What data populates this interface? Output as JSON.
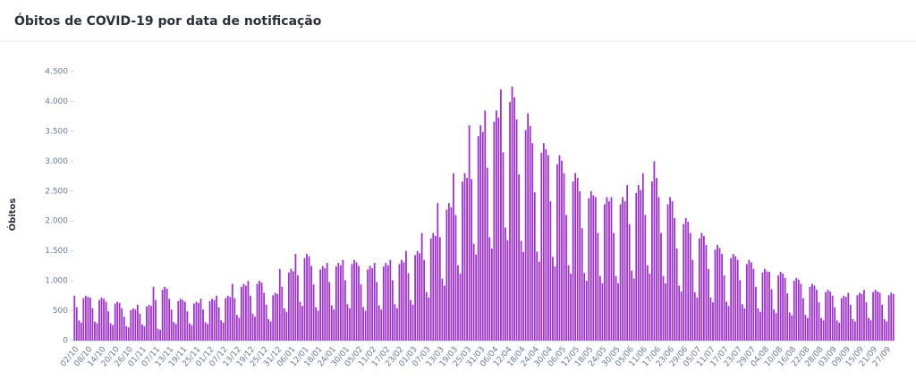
{
  "chart_data": {
    "type": "bar",
    "title": "Óbitos de COVID-19 por data de notificação",
    "y_label": "Óbitos",
    "color": "#9b2fd1",
    "grid": false,
    "ylim": [
      0,
      4500
    ],
    "yticks": [
      0,
      500,
      {
        "value": 1000,
        "label": "1.000"
      },
      {
        "value": 1500,
        "label": "1.500"
      },
      {
        "value": 2000,
        "label": "2.000"
      },
      {
        "value": 2500,
        "label": "2.500"
      },
      {
        "value": 3000,
        "label": "3.000"
      },
      {
        "value": 3500,
        "label": "3.500"
      },
      {
        "value": 4000,
        "label": "4.000"
      },
      {
        "value": 4500,
        "label": "4.500"
      }
    ],
    "categories": [
      "02/10",
      null,
      null,
      null,
      null,
      null,
      "08/10",
      null,
      null,
      null,
      null,
      null,
      "14/10",
      null,
      null,
      null,
      null,
      null,
      "20/10",
      null,
      null,
      null,
      null,
      null,
      "26/10",
      null,
      null,
      null,
      null,
      null,
      "01/11",
      null,
      null,
      null,
      null,
      null,
      "07/11",
      null,
      null,
      null,
      null,
      null,
      "13/11",
      null,
      null,
      null,
      null,
      null,
      "19/11",
      null,
      null,
      null,
      null,
      null,
      "25/11",
      null,
      null,
      null,
      null,
      null,
      "01/12",
      null,
      null,
      null,
      null,
      null,
      "07/12",
      null,
      null,
      null,
      null,
      null,
      "13/12",
      null,
      null,
      null,
      null,
      null,
      "19/12",
      null,
      null,
      null,
      null,
      null,
      "25/12",
      null,
      null,
      null,
      null,
      null,
      "31/12",
      null,
      null,
      null,
      null,
      null,
      "06/01",
      null,
      null,
      null,
      null,
      null,
      "12/01",
      null,
      null,
      null,
      null,
      null,
      "18/01",
      null,
      null,
      null,
      null,
      null,
      "24/01",
      null,
      null,
      null,
      null,
      null,
      "30/01",
      null,
      null,
      null,
      null,
      null,
      "05/02",
      null,
      null,
      null,
      null,
      null,
      "11/02",
      null,
      null,
      null,
      null,
      null,
      "17/02",
      null,
      null,
      null,
      null,
      null,
      "23/02",
      null,
      null,
      null,
      null,
      null,
      "01/03",
      null,
      null,
      null,
      null,
      null,
      "07/03",
      null,
      null,
      null,
      null,
      null,
      "13/03",
      null,
      null,
      null,
      null,
      null,
      "19/03",
      null,
      null,
      null,
      null,
      null,
      "25/03",
      null,
      null,
      null,
      null,
      null,
      "31/03",
      null,
      null,
      null,
      null,
      null,
      "06/04",
      null,
      null,
      null,
      null,
      null,
      "12/04",
      null,
      null,
      null,
      null,
      null,
      "18/04",
      null,
      null,
      null,
      null,
      null,
      "24/04",
      null,
      null,
      null,
      null,
      null,
      "30/04",
      null,
      null,
      null,
      null,
      null,
      "06/05",
      null,
      null,
      null,
      null,
      null,
      "12/05",
      null,
      null,
      null,
      null,
      null,
      "18/05",
      null,
      null,
      null,
      null,
      null,
      "24/05",
      null,
      null,
      null,
      null,
      null,
      "30/05",
      null,
      null,
      null,
      null,
      null,
      "05/06",
      null,
      null,
      null,
      null,
      null,
      "11/06",
      null,
      null,
      null,
      null,
      null,
      "17/06",
      null,
      null,
      null,
      null,
      null,
      "23/06",
      null,
      null,
      null,
      null,
      null,
      "29/06",
      null,
      null,
      null,
      null,
      null,
      "05/07",
      null,
      null,
      null,
      null,
      null,
      "11/07",
      null,
      null,
      null,
      null,
      null,
      "17/07",
      null,
      null,
      null,
      null,
      null,
      "23/07",
      null,
      null,
      null,
      null,
      null,
      "29/07",
      null,
      null,
      null,
      null,
      null,
      "04/08",
      null,
      null,
      null,
      null,
      null,
      "10/08",
      null,
      null,
      null,
      null,
      null,
      "16/08",
      null,
      null,
      null,
      null,
      null,
      "22/08",
      null,
      null,
      null,
      null,
      null,
      "28/08",
      null,
      null,
      null,
      null,
      null,
      "03/09",
      null,
      null,
      null,
      null,
      null,
      "09/09",
      null,
      null,
      null,
      null,
      null,
      "15/09",
      null,
      null,
      null,
      null,
      null,
      "21/09",
      null,
      null,
      null,
      null,
      null,
      "27/09",
      null,
      null,
      null
    ],
    "values": [
      750,
      560,
      340,
      300,
      710,
      750,
      730,
      720,
      540,
      320,
      290,
      680,
      720,
      700,
      650,
      490,
      290,
      260,
      620,
      650,
      630,
      540,
      400,
      240,
      220,
      510,
      540,
      520,
      600,
      450,
      270,
      240,
      570,
      600,
      580,
      900,
      680,
      200,
      180,
      850,
      900,
      870,
      700,
      520,
      310,
      280,
      660,
      700,
      680,
      650,
      490,
      290,
      260,
      620,
      650,
      630,
      700,
      520,
      310,
      280,
      660,
      700,
      680,
      750,
      560,
      340,
      300,
      710,
      750,
      730,
      950,
      710,
      430,
      380,
      900,
      950,
      920,
      1000,
      750,
      450,
      400,
      950,
      1000,
      970,
      800,
      600,
      360,
      320,
      760,
      800,
      780,
      1200,
      900,
      540,
      480,
      1140,
      1200,
      1160,
      1450,
      1090,
      650,
      580,
      1380,
      1450,
      1410,
      1250,
      940,
      560,
      500,
      1190,
      1250,
      1210,
      1300,
      980,
      590,
      520,
      1240,
      1300,
      1260,
      1350,
      1010,
      610,
      540,
      1280,
      1350,
      1310,
      1250,
      940,
      560,
      500,
      1190,
      1250,
      1210,
      1300,
      980,
      590,
      520,
      1240,
      1300,
      1260,
      1350,
      1010,
      610,
      540,
      1280,
      1350,
      1310,
      1500,
      1130,
      680,
      600,
      1430,
      1500,
      1460,
      1800,
      1350,
      810,
      720,
      1710,
      1800,
      1750,
      2300,
      1730,
      1040,
      920,
      2190,
      2300,
      2230,
      2800,
      2100,
      1260,
      1120,
      2660,
      2800,
      2720,
      3600,
      2700,
      1620,
      1440,
      3420,
      3600,
      3490,
      3850,
      2890,
      1730,
      1540,
      3660,
      3850,
      3730,
      4200,
      3150,
      1890,
      1680,
      3990,
      4250,
      4070,
      3700,
      2780,
      1670,
      1480,
      3520,
      3800,
      3590,
      3300,
      2480,
      1490,
      1320,
      3140,
      3300,
      3200,
      3100,
      2330,
      1400,
      1240,
      2950,
      3100,
      3010,
      2800,
      2100,
      1260,
      1120,
      2660,
      2800,
      2720,
      2500,
      1880,
      1130,
      1000,
      2380,
      2500,
      2430,
      2400,
      1800,
      1080,
      960,
      2280,
      2400,
      2330,
      2400,
      1800,
      1080,
      960,
      2280,
      2400,
      2330,
      2600,
      1950,
      1170,
      1040,
      2470,
      2600,
      2520,
      2800,
      2100,
      1260,
      1120,
      2660,
      3000,
      2720,
      2400,
      1800,
      1080,
      960,
      2280,
      2400,
      2330,
      2050,
      1540,
      920,
      820,
      1950,
      2050,
      1990,
      1800,
      1350,
      810,
      720,
      1710,
      1800,
      1750,
      1600,
      1200,
      720,
      640,
      1520,
      1600,
      1550,
      1450,
      1090,
      650,
      580,
      1380,
      1450,
      1410,
      1350,
      1010,
      610,
      540,
      1280,
      1350,
      1310,
      1200,
      900,
      540,
      480,
      1140,
      1200,
      1160,
      1150,
      860,
      520,
      460,
      1090,
      1150,
      1120,
      1050,
      790,
      470,
      420,
      1000,
      1050,
      1020,
      950,
      710,
      430,
      380,
      900,
      950,
      920,
      850,
      640,
      380,
      340,
      810,
      850,
      820,
      750,
      560,
      340,
      300,
      710,
      750,
      730,
      800,
      600,
      360,
      320,
      760,
      800,
      780,
      850,
      640,
      380,
      340,
      810,
      850,
      820,
      800,
      600,
      360,
      320,
      760,
      800,
      780
    ]
  }
}
